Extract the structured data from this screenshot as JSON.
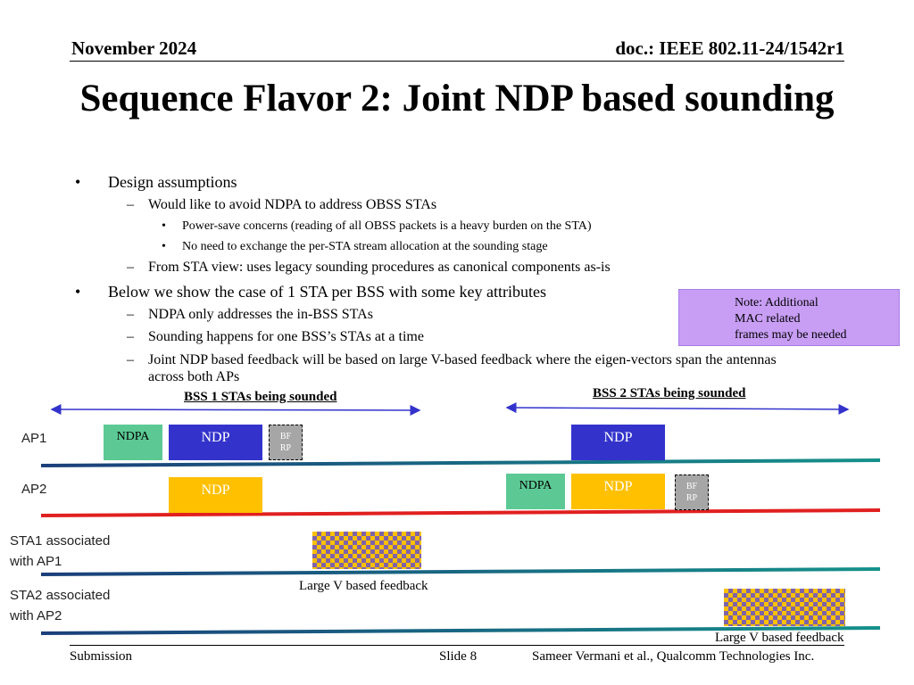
{
  "header": {
    "date": "November 2024",
    "doc": "doc.: IEEE 802.11-24/1542r1"
  },
  "title": "Sequence Flavor 2: Joint NDP based sounding",
  "bullets": {
    "b1": "Design assumptions",
    "b1_1": "Would like to avoid NDPA to address OBSS STAs",
    "b1_1_1": "Power-save concerns (reading of all OBSS packets is a heavy burden on the STA)",
    "b1_1_2": "No need to exchange the per-STA stream allocation at the sounding stage",
    "b1_2": "From STA view: uses legacy sounding procedures as canonical components as-is",
    "b2": "Below we show the case of 1 STA per BSS with some key attributes",
    "b2_1": "NDPA only addresses the in-BSS STAs",
    "b2_2": "Sounding happens for one BSS’s STAs at a time",
    "b2_3a": "Joint NDP based feedback will be based on large V-based feedback where the eigen-vectors span the antennas",
    "b2_3b": "across both APs",
    "dot": "•",
    "dash": "–"
  },
  "note": "Note: Additional\nMAC related\nframes may be needed",
  "diagram": {
    "bss1_label": "BSS 1 STAs being sounded",
    "bss2_label": "BSS 2 STAs being sounded",
    "rows": {
      "ap1": "AP1",
      "ap2": "AP2",
      "sta1": "STA1 associated\nwith AP1",
      "sta2": "STA2 associated\nwith AP2"
    },
    "ndpa": "NDPA",
    "ndp": "NDP",
    "bfrp": "BF\nRP",
    "feedback_caption": "Large V based feedback",
    "colors": {
      "ndpa": "#5cc994",
      "ndp_blue": "#3333cc",
      "ndp_yellow": "#ffc000",
      "bfrp": "#a6a6a6",
      "ap1_line": "#1f7a7a",
      "ap2_line": "#e0201f",
      "sta_line": "#1f6f7a",
      "arrow": "#3333cc",
      "note_bg": "#c89ef5"
    }
  },
  "footer": {
    "left": "Submission",
    "slide": "Slide 8",
    "author": "Sameer Vermani et al., Qualcomm Technologies Inc."
  }
}
